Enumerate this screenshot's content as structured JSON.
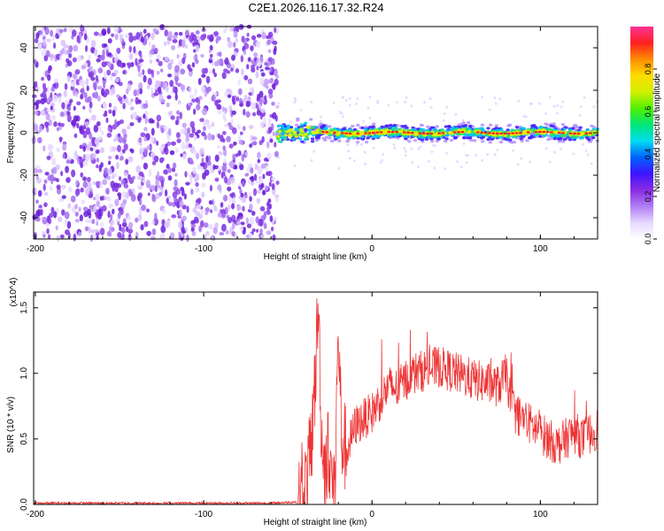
{
  "title": "C2E1.2026.116.17.32.R24",
  "chart_data": [
    {
      "type": "heatmap",
      "xlabel": "Height of straight line (km)",
      "ylabel": "Frequency (Hz)",
      "xlim": [
        -201,
        134
      ],
      "ylim": [
        -50,
        50
      ],
      "xticks": [
        -200,
        -100,
        0,
        100
      ],
      "yticks": [
        -40,
        -20,
        0,
        20,
        40
      ],
      "colorbar": {
        "label": "Normalized spectral amplitude",
        "range": [
          0,
          1
        ],
        "ticks": [
          "0.0",
          "0.2",
          "0.4",
          "0.6",
          "0.8"
        ],
        "colors": [
          "#ffffff",
          "#e6d8ff",
          "#b07cf5",
          "#8a2be2",
          "#3c14ff",
          "#0064ff",
          "#00dcf0",
          "#00e678",
          "#50f000",
          "#d2f000",
          "#ffdc00",
          "#ff8c00",
          "#ff2020",
          "#ff3296"
        ]
      },
      "noise_region_x": [
        -201,
        -56
      ],
      "signal_band_center_hz": 0
    },
    {
      "type": "line",
      "xlabel": "Height of straight line (km)",
      "ylabel": "SNR (10 * v/v)",
      "y_multiplier": "(x10^4)",
      "xlim": [
        -201,
        134
      ],
      "ylim": [
        0,
        1.62
      ],
      "xticks": [
        -200,
        -100,
        0,
        100
      ],
      "yticks": [
        "0.0",
        "0.5",
        "1.0",
        "1.5"
      ],
      "color": "#ee3333",
      "series": [
        {
          "x": [
            -201,
            -180,
            -160,
            -140,
            -120,
            -100,
            -80,
            -60,
            -45,
            -40,
            -38,
            -36,
            -35,
            -34,
            -33,
            -32,
            -31,
            -30,
            -28,
            -26,
            -24,
            -22,
            -21,
            -20,
            -18,
            -15,
            -10,
            -5,
            0,
            5,
            10,
            15,
            20,
            25,
            30,
            40,
            50,
            60,
            70,
            75,
            80,
            82,
            85,
            90,
            95,
            100,
            105,
            110,
            115,
            120,
            125,
            134
          ],
          "y": [
            0.01,
            0.01,
            0.01,
            0.01,
            0.01,
            0.01,
            0.01,
            0.01,
            0.02,
            0.1,
            0.25,
            0.45,
            0.7,
            0.9,
            1.2,
            1.5,
            1.1,
            0.5,
            0.3,
            0.4,
            0.2,
            0.12,
            0.8,
            1.3,
            0.5,
            0.4,
            0.6,
            0.65,
            0.7,
            0.8,
            0.9,
            0.88,
            0.95,
            1.0,
            1.02,
            1.05,
            1.0,
            0.95,
            0.92,
            0.9,
            1.0,
            0.8,
            0.7,
            0.65,
            0.6,
            0.55,
            0.5,
            0.45,
            0.5,
            0.55,
            0.5,
            0.58
          ]
        }
      ]
    }
  ]
}
